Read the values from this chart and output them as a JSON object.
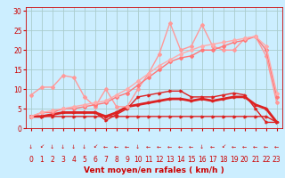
{
  "background_color": "#cceeff",
  "grid_color": "#aacccc",
  "xlabel": "Vent moyen/en rafales ( km/h )",
  "x_ticks": [
    0,
    1,
    2,
    3,
    4,
    5,
    6,
    7,
    8,
    9,
    10,
    11,
    12,
    13,
    14,
    15,
    16,
    17,
    18,
    19,
    20,
    21,
    22,
    23
  ],
  "y_ticks": [
    0,
    5,
    10,
    15,
    20,
    25,
    30
  ],
  "ylim": [
    0,
    31
  ],
  "xlim": [
    -0.5,
    23.5
  ],
  "lines": [
    {
      "color": "#dd2222",
      "lw": 1.0,
      "marker": ">",
      "ms": 2.0,
      "data_x": [
        0,
        1,
        2,
        3,
        4,
        5,
        6,
        7,
        8,
        9,
        10,
        11,
        12,
        13,
        14,
        15,
        16,
        17,
        18,
        19,
        20,
        21,
        22,
        23
      ],
      "data_y": [
        3,
        3,
        3,
        3,
        3,
        3,
        3,
        3,
        3,
        3,
        3,
        3,
        3,
        3,
        3,
        3,
        3,
        3,
        3,
        3,
        3,
        3,
        3,
        1.5
      ]
    },
    {
      "color": "#dd2222",
      "lw": 1.0,
      "marker": ">",
      "ms": 2.0,
      "data_x": [
        0,
        1,
        2,
        3,
        4,
        5,
        6,
        7,
        8,
        9,
        10,
        11,
        12,
        13,
        14,
        15,
        16,
        17,
        18,
        19,
        20,
        21,
        22,
        23
      ],
      "data_y": [
        3,
        3,
        3.5,
        4,
        4,
        4,
        4,
        2,
        3.5,
        5,
        8,
        8.5,
        9,
        9.5,
        9.5,
        8,
        8,
        8,
        8.5,
        9,
        8.5,
        5,
        1.5,
        1.5
      ]
    },
    {
      "color": "#dd2222",
      "lw": 2.0,
      "marker": ">",
      "ms": 2.0,
      "data_x": [
        0,
        1,
        2,
        3,
        4,
        5,
        6,
        7,
        8,
        9,
        10,
        11,
        12,
        13,
        14,
        15,
        16,
        17,
        18,
        19,
        20,
        21,
        22,
        23
      ],
      "data_y": [
        3,
        3,
        3.5,
        4,
        4,
        4,
        4,
        3,
        4,
        5.5,
        6,
        6.5,
        7,
        7.5,
        7.5,
        7,
        7.5,
        7,
        7.5,
        8,
        8,
        6,
        5,
        1.5
      ]
    },
    {
      "color": "#ff9999",
      "lw": 1.0,
      "marker": "D",
      "ms": 2.0,
      "data_x": [
        0,
        1,
        2,
        3,
        4,
        5,
        6,
        7,
        8,
        9,
        10,
        11,
        12,
        13,
        14,
        15,
        16,
        17,
        18,
        19,
        20,
        21,
        22,
        23
      ],
      "data_y": [
        8.5,
        10.5,
        10.5,
        13.5,
        13,
        8,
        5.5,
        10,
        5.5,
        5.5,
        10,
        14,
        19,
        27,
        20,
        21,
        26.5,
        21,
        20,
        20,
        23,
        23.5,
        18.5,
        6.5
      ]
    },
    {
      "color": "#ff7777",
      "lw": 1.0,
      "marker": "D",
      "ms": 2.0,
      "data_x": [
        0,
        1,
        2,
        3,
        4,
        5,
        6,
        7,
        8,
        9,
        10,
        11,
        12,
        13,
        14,
        15,
        16,
        17,
        18,
        19,
        20,
        21,
        22,
        23
      ],
      "data_y": [
        3,
        4,
        4,
        5,
        5,
        5.5,
        6,
        6.5,
        8,
        9,
        11,
        13,
        15,
        17,
        18,
        18.5,
        20,
        20,
        21,
        22,
        22.5,
        23.5,
        20,
        8
      ]
    },
    {
      "color": "#ffaaaa",
      "lw": 1.0,
      "marker": "D",
      "ms": 2.0,
      "data_x": [
        0,
        1,
        2,
        3,
        4,
        5,
        6,
        7,
        8,
        9,
        10,
        11,
        12,
        13,
        14,
        15,
        16,
        17,
        18,
        19,
        20,
        21,
        22,
        23
      ],
      "data_y": [
        3,
        4,
        4.5,
        5,
        5.5,
        6,
        6.5,
        7,
        8.5,
        10,
        12,
        14,
        16,
        17.5,
        19,
        20,
        21,
        21.5,
        22,
        22.5,
        23,
        23.5,
        21,
        9
      ]
    }
  ],
  "arrows": [
    "↓",
    "↙",
    "↓",
    "↓",
    "↓",
    "↓",
    "↙",
    "←",
    "←",
    "←",
    "↓",
    "←",
    "←",
    "←",
    "←",
    "←",
    "↓",
    "←",
    "↙",
    "←",
    "←",
    "←",
    "←",
    "←"
  ],
  "font_color": "#cc0000",
  "tick_fontsize": 5.5,
  "label_fontsize": 6.5
}
